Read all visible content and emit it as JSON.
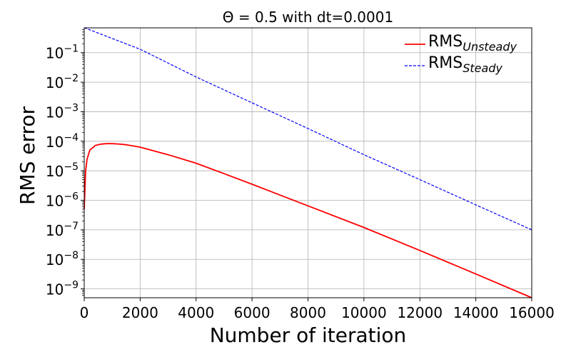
{
  "chart_data": {
    "type": "line",
    "title": "Θ = 0.5 with dt=0.0001",
    "xlabel": "Number of iteration",
    "ylabel": "RMS error",
    "xlim": [
      0,
      16000
    ],
    "ylim_log10": [
      -9.3,
      -0.16
    ],
    "yscale": "log",
    "grid": true,
    "legend_position": "top-right",
    "x_ticks": [
      {
        "value": 0,
        "label": "0"
      },
      {
        "value": 2000,
        "label": "2000"
      },
      {
        "value": 4000,
        "label": "4000"
      },
      {
        "value": 6000,
        "label": "6000"
      },
      {
        "value": 8000,
        "label": "8000"
      },
      {
        "value": 10000,
        "label": "10000"
      },
      {
        "value": 12000,
        "label": "12000"
      },
      {
        "value": 14000,
        "label": "14000"
      },
      {
        "value": 16000,
        "label": "16000"
      }
    ],
    "y_ticks": [
      {
        "exp": -1,
        "base": "10",
        "power": "−1"
      },
      {
        "exp": -2,
        "base": "10",
        "power": "−2"
      },
      {
        "exp": -3,
        "base": "10",
        "power": "−3"
      },
      {
        "exp": -4,
        "base": "10",
        "power": "−4"
      },
      {
        "exp": -5,
        "base": "10",
        "power": "−5"
      },
      {
        "exp": -6,
        "base": "10",
        "power": "−6"
      },
      {
        "exp": -7,
        "base": "10",
        "power": "−7"
      },
      {
        "exp": -8,
        "base": "10",
        "power": "−8"
      },
      {
        "exp": -9,
        "base": "10",
        "power": "−9"
      }
    ],
    "series": [
      {
        "name": "RMS",
        "name_sub": "Unsteady",
        "color": "#ff0000",
        "dash": "solid",
        "x": [
          0,
          50,
          100,
          200,
          400,
          600,
          800,
          1000,
          1200,
          1500,
          2000,
          3000,
          4000,
          5000,
          6000,
          7000,
          8000,
          10000,
          12000,
          14000,
          16000
        ],
        "y": [
          5e-07,
          1e-05,
          2.4e-05,
          5e-05,
          7.2e-05,
          8e-05,
          8.3e-05,
          8.3e-05,
          8.1e-05,
          7.6e-05,
          6.3e-05,
          3.5e-05,
          1.8e-05,
          8e-06,
          3.5e-06,
          1.5e-06,
          6.5e-07,
          1.2e-07,
          2e-08,
          3.2e-09,
          5e-10
        ]
      },
      {
        "name": "RMS",
        "name_sub": "Steady",
        "color": "#0000ff",
        "dash": "dashed",
        "x": [
          0,
          2000,
          4000,
          6000,
          8000,
          10000,
          12000,
          14000,
          16000
        ],
        "y": [
          0.7,
          0.13,
          0.015,
          0.002,
          0.00027,
          3.5e-05,
          5e-06,
          7e-07,
          1e-07
        ]
      }
    ]
  }
}
